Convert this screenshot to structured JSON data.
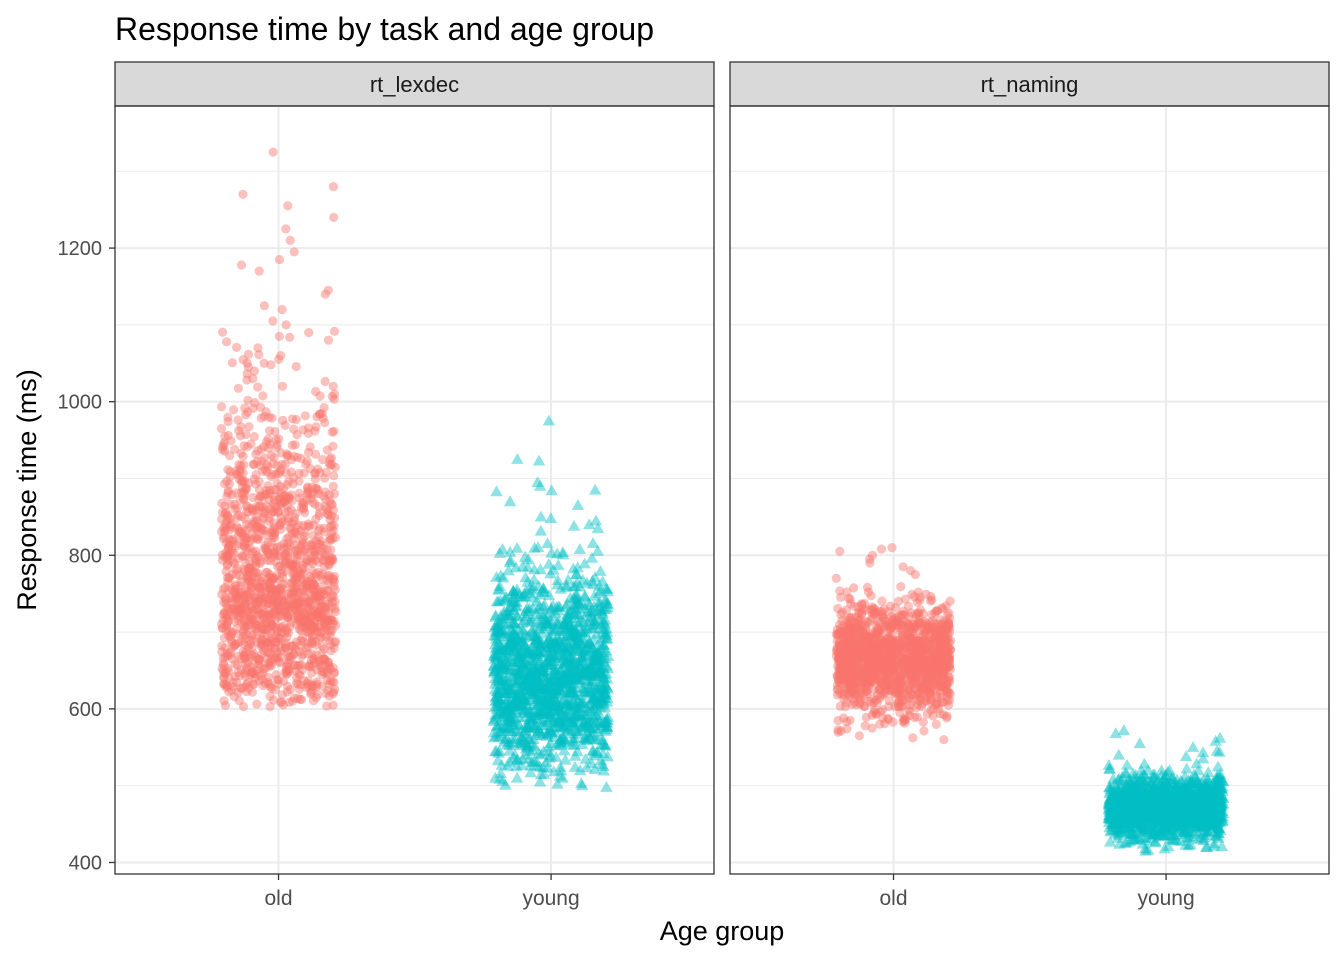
{
  "chart_data": {
    "type": "scatter",
    "style": "jittered strip plot, faceted by task",
    "title": "Response time by task and age group",
    "xlabel": "Age group",
    "ylabel": "Response time (ms)",
    "ylim": [
      385,
      1385
    ],
    "y_ticks": [
      400,
      600,
      800,
      1000,
      1200
    ],
    "y_tick_labels": [
      "400",
      "600",
      "800",
      "1000",
      "1200"
    ],
    "categories": [
      "old",
      "young"
    ],
    "grid": true,
    "theme": "bw",
    "legend": "none",
    "colors": {
      "old": "#F8766D",
      "young": "#00BFC4",
      "strip": "#D9D9D9",
      "grid": "#EBEBEB",
      "axis_text": "#4D4D4D"
    },
    "markers": {
      "old": "circle",
      "young": "triangle"
    },
    "point_opacity": 0.45,
    "jitter_width": 0.42,
    "facets": [
      {
        "label": "rt_lexdec",
        "groups": [
          {
            "category": "old",
            "n": 2284,
            "center": 750,
            "spread": 85,
            "skew": 1,
            "min": 603,
            "max": 1325,
            "outliers": [
              1325,
              1280,
              1270,
              1255,
              1240,
              1225,
              1210,
              1195,
              1185,
              1178,
              1170,
              1145,
              1140,
              1125,
              1120,
              1105,
              1100,
              1090,
              1085,
              1080,
              1070,
              1060,
              1055,
              1050,
              1045,
              1040,
              1030,
              1020,
              640,
              635,
              632,
              628,
              625,
              603
            ]
          },
          {
            "category": "young",
            "n": 2284,
            "center": 640,
            "spread": 58,
            "skew": 0.5,
            "min": 498,
            "max": 975,
            "outliers": [
              975,
              925,
              923,
              895,
              890,
              885,
              870,
              850,
              848,
              845,
              840,
              838,
              835,
              520,
              515,
              510,
              505,
              500,
              498
            ]
          }
        ]
      },
      {
        "label": "rt_naming",
        "groups": [
          {
            "category": "old",
            "n": 2284,
            "center": 665,
            "spread": 34,
            "skew": 0,
            "min": 560,
            "max": 810,
            "outliers": [
              810,
              808,
              805,
              800,
              795,
              790,
              785,
              780,
              775,
              770,
              588,
              585,
              580,
              575,
              560
            ]
          },
          {
            "category": "young",
            "n": 2284,
            "center": 472,
            "spread": 20,
            "skew": 0,
            "min": 415,
            "max": 572,
            "outliers": [
              572,
              568,
              562,
              558,
              555,
              550,
              545,
              540,
              535,
              425,
              422,
              420,
              418,
              415
            ]
          }
        ]
      }
    ]
  }
}
